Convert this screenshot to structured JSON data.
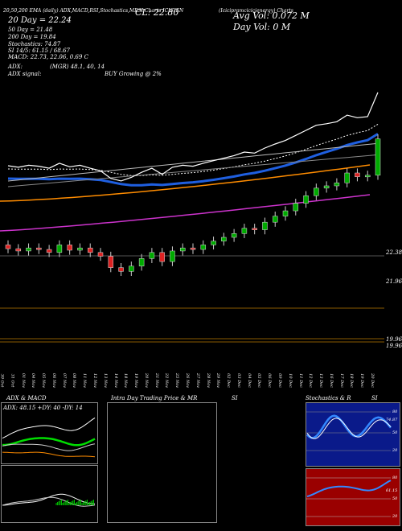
{
  "header": {
    "top_line": "20,50,200 EMA (daily) ADX,MACD,RSI,Stochastics,MRSI Charts ICICIEN",
    "lines_top_right": "(Icicipramcicicienergy) Charts",
    "cl_label": "CL: 22.80",
    "avg_vol": "Avg Vol: 0.072  M",
    "day_vol": "Day Vol: 0   M",
    "ema20": "20  Day = 22.24",
    "ema50": "50  Day = 21.48",
    "ema200": "200  Day = 19.84",
    "stochastics": "Stochastics: 74.87",
    "si": "SI  14/5: 61.15 / 68.67",
    "macd": "MACD: 22.73,  22.06,  0.69  C",
    "adx": "ADX:",
    "adx_vals": "(MGR) 48.1,  40,  14",
    "adx_signal": "ADX  signal:",
    "buy": "BUY Growing @ 2%"
  },
  "price_axis": [
    "22.38",
    "21.96",
    "19.96",
    "19.96"
  ],
  "dates": [
    "30 Oct",
    "31 Oct",
    "01 Nov",
    "04 Nov",
    "05 Nov",
    "06 Nov",
    "07 Nov",
    "08 Nov",
    "11 Nov",
    "12 Nov",
    "13 Nov",
    "14 Nov",
    "18 Nov",
    "19 Nov",
    "20 Nov",
    "21 Nov",
    "22 Nov",
    "25 Nov",
    "26 Nov",
    "27 Nov",
    "28 Nov",
    "29 Nov",
    "02 Dec",
    "03 Dec",
    "04 Dec",
    "05 Dec",
    "06 Dec",
    "09 Dec",
    "10 Dec",
    "11 Dec",
    "12 Dec",
    "13 Dec",
    "16 Dec",
    "17 Dec",
    "18 Dec",
    "19 Dec",
    "20 Dec"
  ],
  "panels": {
    "adx_title": "ADX  & MACD",
    "adx_readout": "ADX: 48.15 +DY: 40  -DY: 14",
    "intraday_title": "Intra  Day Trading Price  & MR",
    "intraday_si": "SI",
    "stoch_title": "Stochastics & R",
    "stoch_si": "SI",
    "stoch_ticks": [
      "80",
      "50",
      "20"
    ],
    "rsi_ticks": [
      "80",
      "50",
      "20"
    ],
    "stoch_val": "74.87",
    "rsi_val": "61.15"
  },
  "colors": {
    "ema20": "#1f5fe0",
    "ema50": "#ff8c00",
    "ema200": "#cc33cc",
    "up": "#00aa00",
    "down": "#dd2222",
    "price": "#ffffff"
  },
  "chart_data": {
    "type": "line",
    "x": [
      "30 Oct",
      "31 Oct",
      "01 Nov",
      "04 Nov",
      "05 Nov",
      "06 Nov",
      "07 Nov",
      "08 Nov",
      "11 Nov",
      "12 Nov",
      "13 Nov",
      "14 Nov",
      "18 Nov",
      "19 Nov",
      "20 Nov",
      "21 Nov",
      "22 Nov",
      "25 Nov",
      "26 Nov",
      "27 Nov",
      "28 Nov",
      "29 Nov",
      "02 Dec",
      "03 Dec",
      "04 Dec",
      "05 Dec",
      "06 Dec",
      "09 Dec",
      "10 Dec",
      "11 Dec",
      "12 Dec",
      "13 Dec",
      "16 Dec",
      "17 Dec",
      "18 Dec",
      "19 Dec",
      "20 Dec"
    ],
    "series": [
      {
        "name": "CL",
        "values": [
          21.35,
          21.32,
          21.36,
          21.34,
          21.3,
          21.4,
          21.33,
          21.36,
          21.3,
          21.25,
          21.1,
          21.05,
          21.12,
          21.22,
          21.3,
          21.18,
          21.32,
          21.36,
          21.34,
          21.4,
          21.45,
          21.5,
          21.55,
          21.62,
          21.6,
          21.7,
          21.78,
          21.85,
          21.95,
          22.05,
          22.15,
          22.18,
          22.22,
          22.35,
          22.3,
          22.32,
          22.8
        ]
      }
    ],
    "ylim": [
      19.8,
      23.2
    ]
  }
}
